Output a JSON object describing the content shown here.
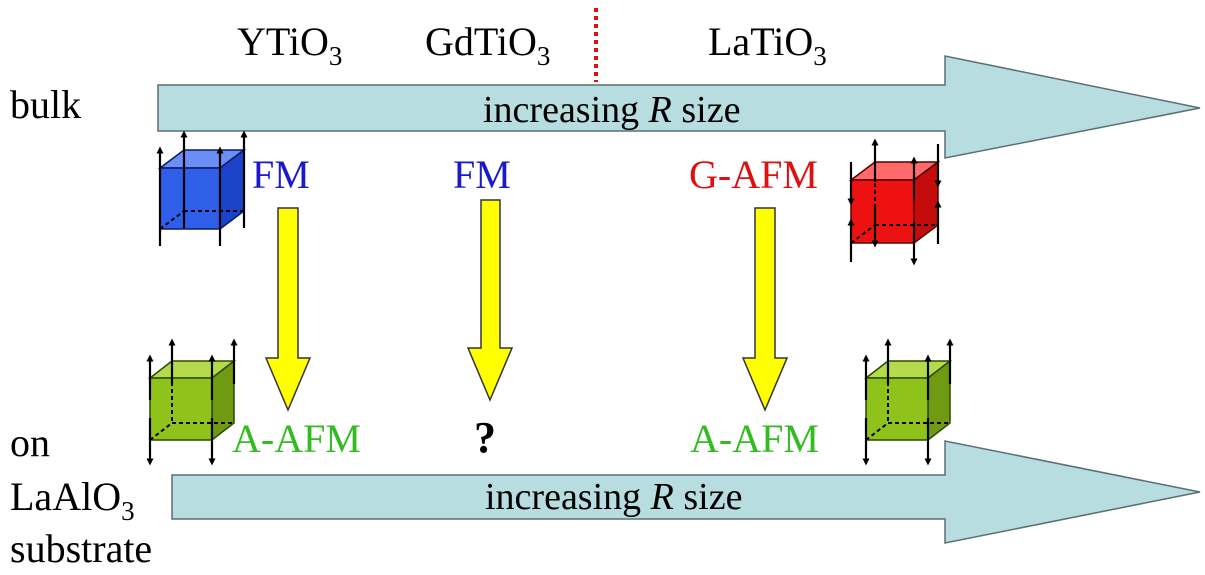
{
  "compounds": [
    {
      "base": "YTiO",
      "sub": "3"
    },
    {
      "base": "GdTiO",
      "sub": "3"
    },
    {
      "base": "LaTiO",
      "sub": "3"
    }
  ],
  "rows": {
    "bulk": {
      "label": "bulk",
      "arrow_text_pre": "increasing ",
      "arrow_text_italic": "R",
      "arrow_text_post": " size"
    },
    "film": {
      "label_line1": "on",
      "label_line2_base": "LaAlO",
      "label_line2_sub": "3",
      "label_line3": "substrate",
      "arrow_text_pre": "increasing ",
      "arrow_text_italic": "R",
      "arrow_text_post": " size"
    }
  },
  "bulk_orders": [
    "FM",
    "FM",
    "G-AFM"
  ],
  "film_orders": [
    "A-AFM",
    "?",
    "A-AFM"
  ],
  "colors": {
    "arrow_fill": "#b8dde0",
    "arrow_stroke": "#5a6f72",
    "fm": "#1a1acc",
    "gafm": "#e01010",
    "aafm": "#33bb22",
    "yellow_arrow": "#ffff00",
    "cube_blue": "#2f5ee8",
    "cube_red": "#ee1111",
    "cube_green": "#8fc21a",
    "divider": "#e01010"
  }
}
